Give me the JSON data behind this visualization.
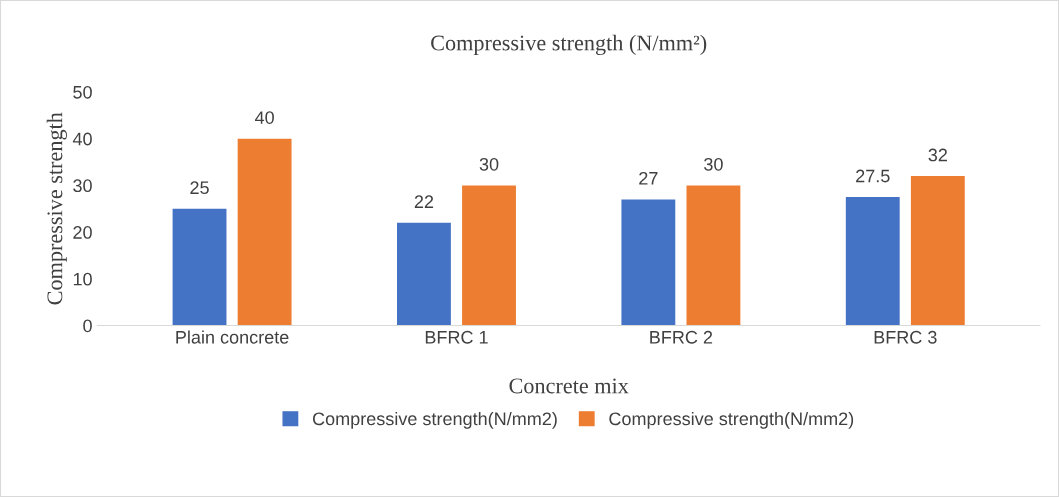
{
  "chart_data": {
    "type": "bar",
    "title": "Compressive strength (N/mm²)",
    "xlabel": "Concrete mix",
    "ylabel": "Compressive strength",
    "categories": [
      "Plain concrete",
      "BFRC 1",
      "BFRC 2",
      "BFRC 3"
    ],
    "series": [
      {
        "name": "Compressive strength(N/mm2)",
        "color": "#4472c4",
        "values": [
          25,
          22,
          27,
          27.5
        ]
      },
      {
        "name": "Compressive strength(N/mm2)",
        "color": "#ed7d31",
        "values": [
          40,
          30,
          30,
          32
        ]
      }
    ],
    "ylim": [
      0,
      50
    ],
    "yticks": [
      0,
      10,
      20,
      30,
      40,
      50
    ],
    "data_labels": true,
    "grid": false,
    "legend": "bottom"
  }
}
